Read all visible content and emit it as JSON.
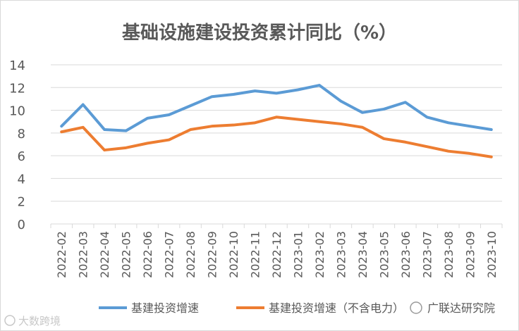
{
  "chart_data": {
    "type": "line",
    "title": "基础设施建设投资累计同比（%）",
    "categories": [
      "2022-02",
      "2022-03",
      "2022-04",
      "2022-05",
      "2022-06",
      "2022-07",
      "2022-08",
      "2022-09",
      "2022-10",
      "2022-11",
      "2022-12",
      "2023-01",
      "2023-02",
      "2023-03",
      "2023-04",
      "2023-05",
      "2023-06",
      "2023-07",
      "2023-08",
      "2023-09",
      "2023-10"
    ],
    "series": [
      {
        "name": "基建投资增速",
        "color": "#5B9BD5",
        "values": [
          8.6,
          10.5,
          8.3,
          8.2,
          9.3,
          9.6,
          10.4,
          11.2,
          11.4,
          11.7,
          11.5,
          11.8,
          12.2,
          10.8,
          9.8,
          10.1,
          10.7,
          9.4,
          8.9,
          8.6,
          8.3
        ]
      },
      {
        "name": "基建投资增速（不含电力）",
        "color": "#ED7D31",
        "values": [
          8.1,
          8.5,
          6.5,
          6.7,
          7.1,
          7.4,
          8.3,
          8.6,
          8.7,
          8.9,
          9.4,
          9.2,
          9.0,
          8.8,
          8.5,
          7.5,
          7.2,
          6.8,
          6.4,
          6.2,
          5.9
        ]
      }
    ],
    "ylim": [
      0,
      14
    ],
    "yticks": [
      0,
      2,
      4,
      6,
      8,
      10,
      12,
      14
    ],
    "grid": true,
    "legend_position": "bottom",
    "xlabel": "",
    "ylabel": ""
  },
  "watermarks": {
    "left": "大数跨境",
    "right": "广联达研究院"
  },
  "colors": {
    "grid": "#D9D9D9",
    "axis_text": "#595959",
    "title": "#595959",
    "border": "#D9D9D9"
  }
}
